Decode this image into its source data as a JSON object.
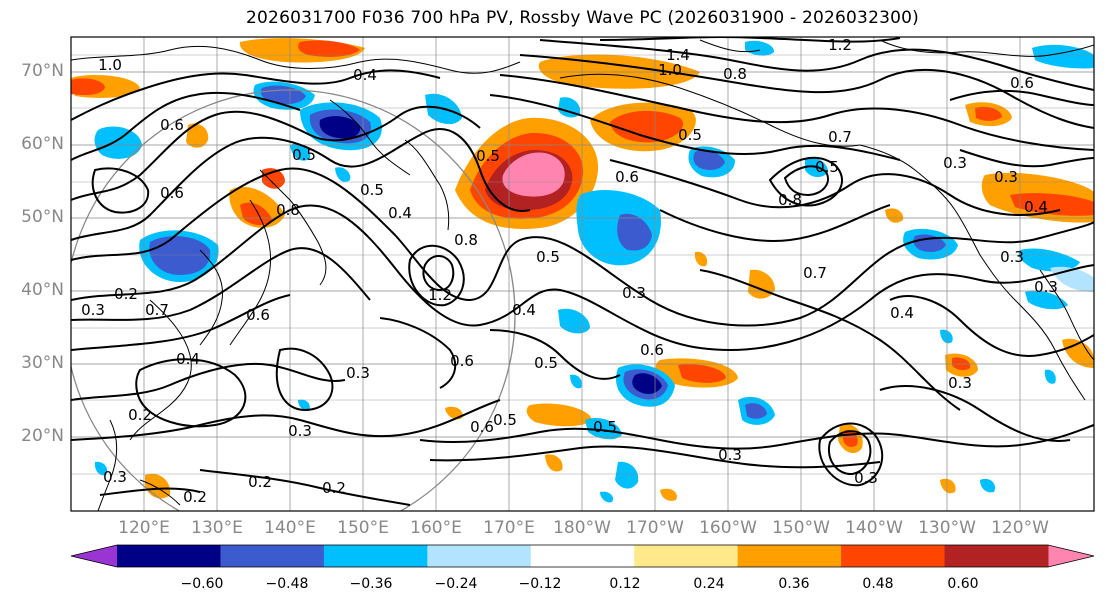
{
  "title": "2026031700 F036 700 hPa PV, Rossby Wave PC (2026031900 - 2026032300)",
  "latitude_labels": [
    "70°N",
    "60°N",
    "50°N",
    "40°N",
    "30°N",
    "20°N"
  ],
  "longitude_labels": [
    "120°E",
    "130°E",
    "140°E",
    "150°E",
    "160°E",
    "170°E",
    "180°W",
    "170°W",
    "160°W",
    "150°W",
    "140°W",
    "130°W",
    "120°W"
  ],
  "colorbar": {
    "ticks": [
      "−0.60",
      "−0.48",
      "−0.36",
      "−0.24",
      "−0.12",
      "0.12",
      "0.24",
      "0.36",
      "0.48",
      "0.60"
    ],
    "colors": [
      "#9a35d4",
      "#000086",
      "#3c5bcf",
      "#00bfff",
      "#b2e3ff",
      "#ffffff",
      "#ffe98a",
      "#ffa000",
      "#ff4500",
      "#b22222",
      "#ff85b0"
    ]
  },
  "contour_labels": [
    "1.4",
    "1.2",
    "1.0",
    "0.8",
    "0.4",
    "0.6",
    "0.5",
    "0.7",
    "0.3",
    "0.6",
    "0.5",
    "0.4",
    "0.3",
    "0.6",
    "0.5",
    "0.3",
    "0.2",
    "0.2",
    "0.2",
    "0.3",
    "0.3",
    "0.8",
    "1.2",
    "0.4",
    "0.6",
    "0.5",
    "0.5",
    "0.6",
    "0.3",
    "0.6",
    "0.5",
    "0.4",
    "0.5",
    "0.3",
    "0.8",
    "0.7",
    "0.8",
    "0.5",
    "0.3",
    "0.7",
    "0.6",
    "0.4",
    "0.3",
    "0.3",
    "0.5",
    "1.0",
    "0.6",
    "0.3",
    "0.4",
    "0.3",
    "0.2",
    "0.2"
  ],
  "colors": {
    "contour": "#000000",
    "grid": "#888888",
    "coast": "#000000",
    "axis_text": "#888888"
  }
}
